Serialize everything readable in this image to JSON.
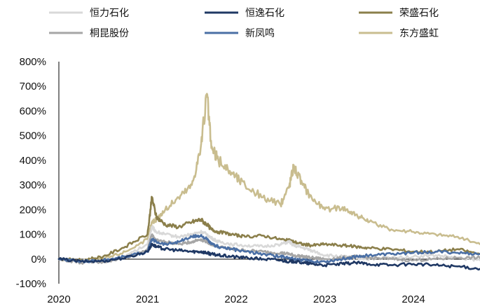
{
  "chart_data": {
    "type": "line",
    "title": "",
    "xlabel": "",
    "ylabel": "",
    "x_ticks": [
      "2020",
      "2021",
      "2022",
      "2023",
      "2024"
    ],
    "y_ticks": [
      "-100%",
      "0%",
      "100%",
      "200%",
      "300%",
      "400%",
      "500%",
      "600%",
      "700%",
      "800%"
    ],
    "ylim": [
      -100,
      800
    ],
    "xlim": [
      2020.0,
      2024.75
    ],
    "legend_position": "top",
    "x": [
      2020.0,
      2020.25,
      2020.5,
      2020.75,
      2021.0,
      2021.05,
      2021.1,
      2021.2,
      2021.35,
      2021.5,
      2021.6,
      2021.67,
      2021.72,
      2021.8,
      2021.95,
      2022.1,
      2022.3,
      2022.5,
      2022.6,
      2022.65,
      2022.75,
      2022.85,
      2023.0,
      2023.2,
      2023.35,
      2023.5,
      2023.75,
      2024.0,
      2024.25,
      2024.5,
      2024.75
    ],
    "series": [
      {
        "name": "恒力石化",
        "color": "#d9d9d9",
        "values": [
          0,
          -8,
          -10,
          10,
          60,
          130,
          110,
          100,
          90,
          100,
          110,
          100,
          85,
          70,
          60,
          55,
          50,
          60,
          70,
          55,
          45,
          35,
          15,
          10,
          5,
          0,
          5,
          10,
          15,
          5,
          -5
        ]
      },
      {
        "name": "恒逸石化",
        "color": "#1f3864",
        "values": [
          0,
          -10,
          -8,
          5,
          30,
          60,
          50,
          40,
          35,
          30,
          30,
          25,
          20,
          15,
          10,
          5,
          0,
          -5,
          -10,
          -10,
          -15,
          -20,
          -25,
          -20,
          -15,
          -20,
          -25,
          -20,
          -25,
          -30,
          -40
        ]
      },
      {
        "name": "荣盛石化",
        "color": "#8b7f4b",
        "values": [
          0,
          -5,
          10,
          50,
          100,
          250,
          170,
          140,
          130,
          150,
          160,
          140,
          120,
          110,
          100,
          90,
          95,
          80,
          75,
          70,
          60,
          55,
          60,
          55,
          50,
          45,
          40,
          30,
          30,
          40,
          20
        ]
      },
      {
        "name": "桐昆股份",
        "color": "#a6a6a6",
        "values": [
          0,
          -15,
          -12,
          5,
          40,
          100,
          75,
          70,
          60,
          70,
          80,
          70,
          60,
          50,
          40,
          35,
          30,
          25,
          20,
          15,
          10,
          5,
          0,
          5,
          10,
          5,
          0,
          -5,
          0,
          5,
          5
        ]
      },
      {
        "name": "新凤鸣",
        "color": "#4a6fa5",
        "values": [
          0,
          -10,
          -5,
          10,
          30,
          80,
          70,
          60,
          70,
          90,
          95,
          80,
          60,
          50,
          40,
          30,
          20,
          10,
          5,
          0,
          -5,
          -10,
          -10,
          0,
          10,
          15,
          20,
          25,
          30,
          25,
          20
        ]
      },
      {
        "name": "东方盛虹",
        "color": "#c9bd8f",
        "values": [
          0,
          -5,
          0,
          30,
          80,
          150,
          160,
          200,
          250,
          300,
          450,
          670,
          450,
          400,
          350,
          300,
          250,
          220,
          300,
          380,
          300,
          250,
          200,
          210,
          180,
          150,
          120,
          110,
          100,
          90,
          60
        ]
      }
    ]
  }
}
